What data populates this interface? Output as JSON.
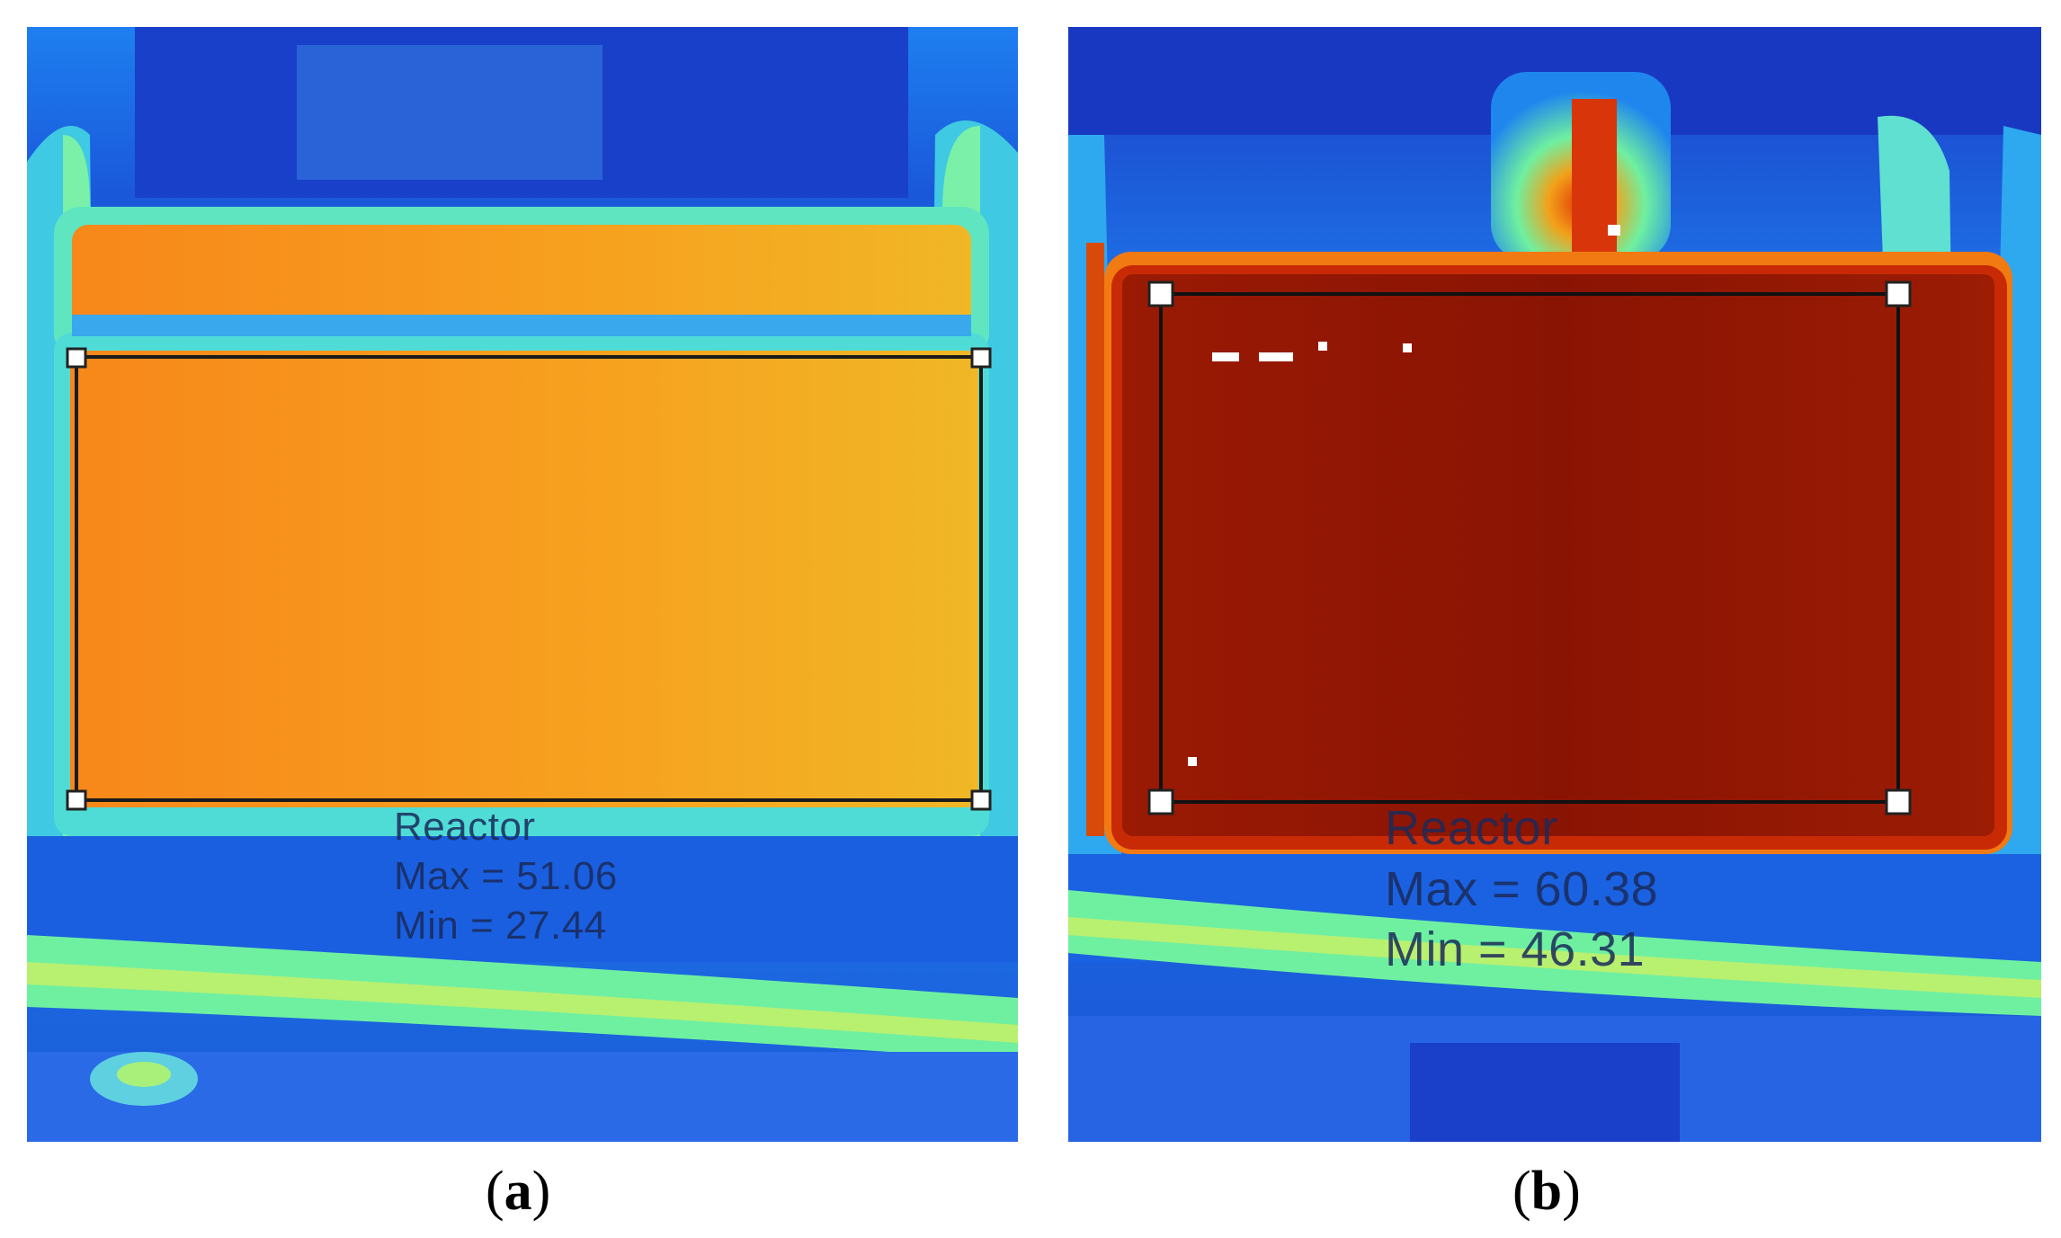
{
  "panels": [
    {
      "id": "a",
      "caption_letter": "a",
      "roi": {
        "name": "Reactor",
        "max_text": "Max = 51.06",
        "min_text": "Min = 27.44"
      }
    },
    {
      "id": "b",
      "caption_letter": "b",
      "roi": {
        "name": "Reactor",
        "max_text": "Max = 60.38",
        "min_text": "Min = 46.31"
      }
    }
  ],
  "colors": {
    "cold": "#1a49d6",
    "cool": "#1f8bf0",
    "mid": "#4fe3c4",
    "warm_a": "#f8a21a",
    "hot_b": "#8e1603"
  }
}
